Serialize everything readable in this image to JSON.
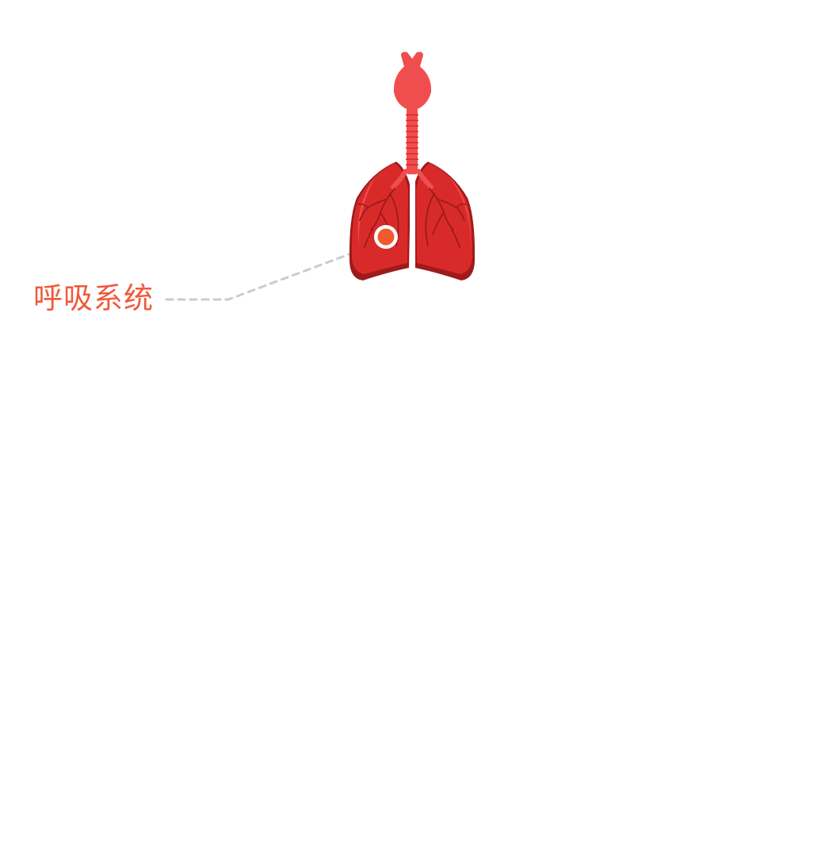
{
  "diagram": {
    "organ_icon": "lungs-trachea-icon",
    "marker_icon": "hotspot-dot-icon",
    "label": "呼吸系统",
    "colors": {
      "label": "#f0593a",
      "marker": "#f15a2e",
      "marker_ring": "#ffffff",
      "leader_line": "#cccccc",
      "lung_base": "#d92a2a",
      "lung_light": "#f25353",
      "lung_dark": "#9e1b1b",
      "airway": "#f04e4e"
    }
  }
}
